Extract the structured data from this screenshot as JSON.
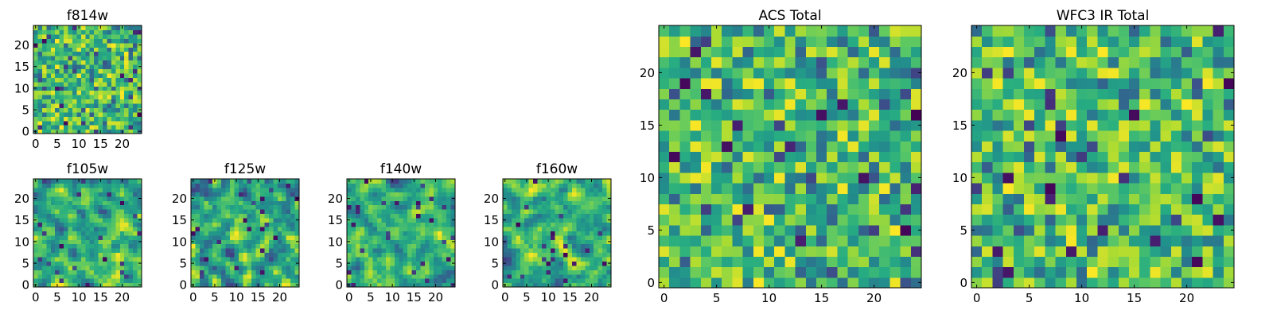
{
  "chart_data": [
    {
      "type": "heatmap",
      "title": "f814w",
      "colormap": "viridis",
      "x_ticks": [
        0,
        5,
        10,
        15,
        20
      ],
      "y_ticks": [
        0,
        5,
        10,
        15,
        20
      ],
      "xlim": [
        0,
        25
      ],
      "ylim": [
        0,
        25
      ],
      "grid_size": 25,
      "seed": 11,
      "smoothing": 0
    },
    {
      "type": "heatmap",
      "title": "f105w",
      "colormap": "viridis",
      "x_ticks": [
        0,
        5,
        10,
        15,
        20
      ],
      "y_ticks": [
        0,
        5,
        10,
        15,
        20
      ],
      "xlim": [
        0,
        25
      ],
      "ylim": [
        0,
        25
      ],
      "grid_size": 25,
      "seed": 23,
      "smoothing": 1
    },
    {
      "type": "heatmap",
      "title": "f125w",
      "colormap": "viridis",
      "x_ticks": [
        0,
        5,
        10,
        15,
        20
      ],
      "y_ticks": [
        0,
        5,
        10,
        15,
        20
      ],
      "xlim": [
        0,
        25
      ],
      "ylim": [
        0,
        25
      ],
      "grid_size": 25,
      "seed": 37,
      "smoothing": 1
    },
    {
      "type": "heatmap",
      "title": "f140w",
      "colormap": "viridis",
      "x_ticks": [
        0,
        5,
        10,
        15,
        20
      ],
      "y_ticks": [
        0,
        5,
        10,
        15,
        20
      ],
      "xlim": [
        0,
        25
      ],
      "ylim": [
        0,
        25
      ],
      "grid_size": 25,
      "seed": 41,
      "smoothing": 1
    },
    {
      "type": "heatmap",
      "title": "f160w",
      "colormap": "viridis",
      "x_ticks": [
        0,
        5,
        10,
        15,
        20
      ],
      "y_ticks": [
        0,
        5,
        10,
        15,
        20
      ],
      "xlim": [
        0,
        25
      ],
      "ylim": [
        0,
        25
      ],
      "grid_size": 25,
      "seed": 53,
      "smoothing": 1
    },
    {
      "type": "heatmap",
      "title": "ACS Total",
      "colormap": "viridis",
      "x_ticks": [
        0,
        5,
        10,
        15,
        20
      ],
      "y_ticks": [
        0,
        5,
        10,
        15,
        20
      ],
      "xlim": [
        0,
        25
      ],
      "ylim": [
        0,
        25
      ],
      "grid_size": 25,
      "seed": 67,
      "smoothing": 0
    },
    {
      "type": "heatmap",
      "title": "WFC3 IR Total",
      "colormap": "viridis",
      "x_ticks": [
        0,
        5,
        10,
        15,
        20
      ],
      "y_ticks": [
        0,
        5,
        10,
        15,
        20
      ],
      "xlim": [
        0,
        25
      ],
      "ylim": [
        0,
        25
      ],
      "grid_size": 25,
      "seed": 79,
      "smoothing": 0
    }
  ]
}
